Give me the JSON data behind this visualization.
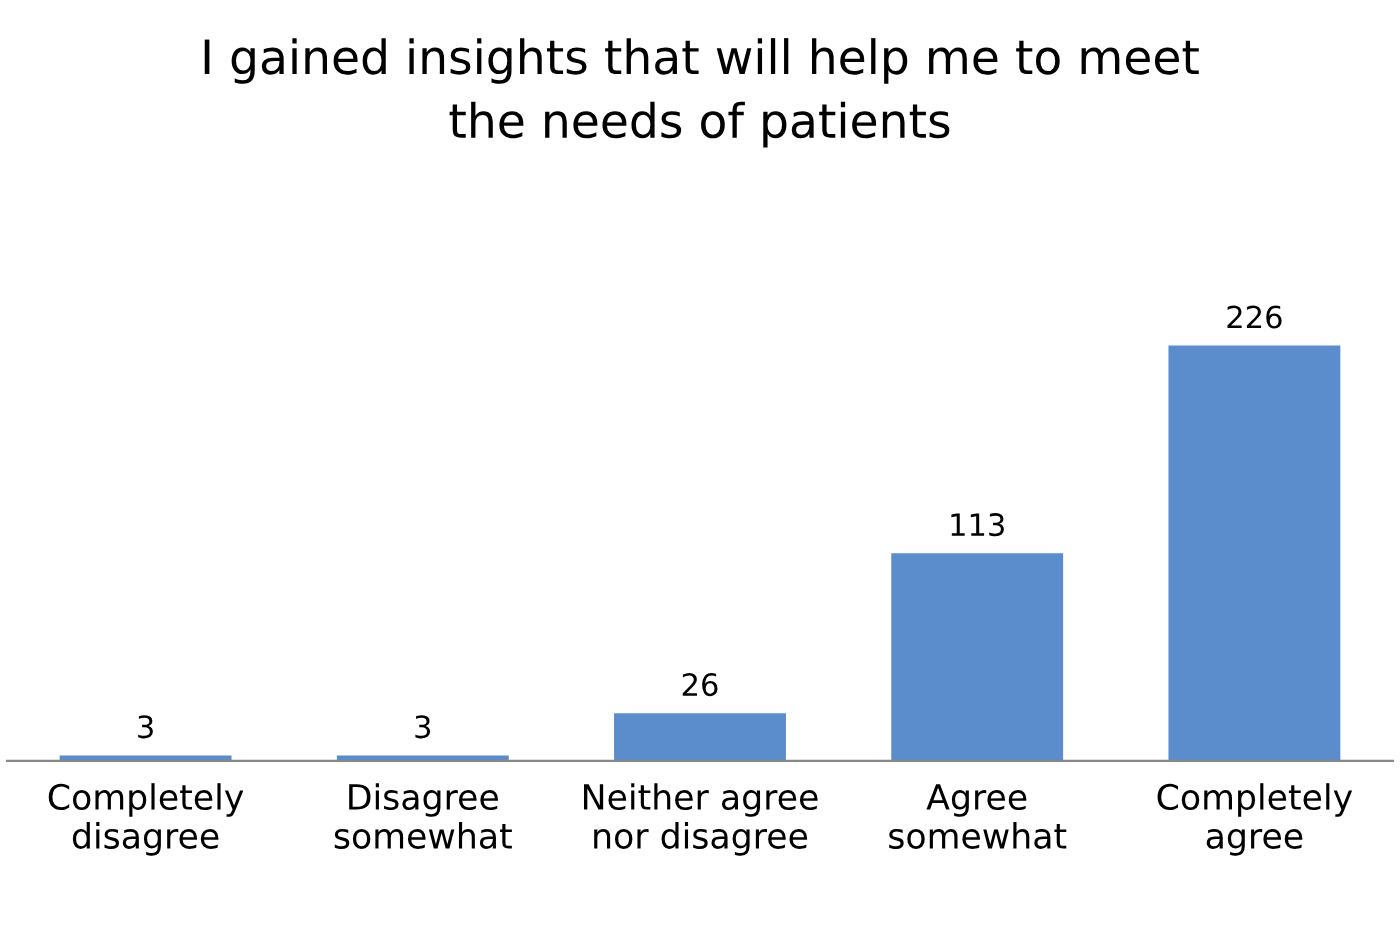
{
  "chart_data": {
    "type": "bar",
    "title": "I gained insights that will help me to meet\nthe needs of patients",
    "categories": [
      "Completely\ndisagree",
      "Disagree\nsomewhat",
      "Neither agree\nnor disagree",
      "Agree\nsomewhat",
      "Completely\nagree"
    ],
    "values": [
      3,
      3,
      26,
      113,
      226
    ],
    "color": "#5b8ccc",
    "data_labels": true,
    "grid": false,
    "legend": false
  }
}
